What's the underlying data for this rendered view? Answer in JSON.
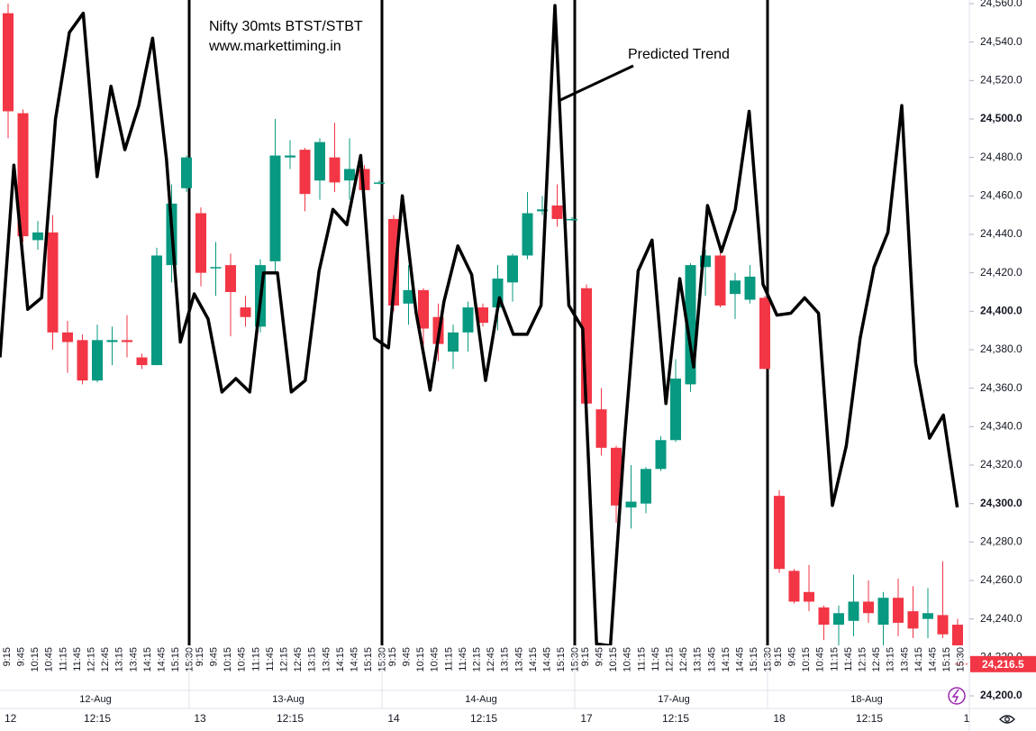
{
  "chart_data": {
    "type": "candlestick",
    "title": "Nifty 30mts BTST/STBT",
    "subtitle": "www.markettiming.in",
    "annotation": "Predicted Trend",
    "dates": [
      "12-Aug",
      "13-Aug",
      "14-Aug",
      "17-Aug",
      "18-Aug"
    ],
    "session_times": [
      "9:15",
      "9:45",
      "10:15",
      "10:45",
      "11:15",
      "11:45",
      "12:15",
      "12:45",
      "13:15",
      "13:45",
      "14:15",
      "14:45",
      "15:15",
      "15:30"
    ],
    "bottom_axis": [
      "12",
      "12:15",
      "13",
      "12:15",
      "14",
      "12:15",
      "17",
      "12:15",
      "18",
      "12:15",
      "1"
    ],
    "up_color": "#089981",
    "down_color": "#f23645",
    "candles": {
      "open": [
        24555,
        24503,
        24437,
        24441,
        24389,
        24385,
        24364,
        24384,
        24385,
        24376,
        24372,
        24424,
        24464,
        24451,
        24423,
        24424,
        24402,
        24392,
        24426,
        24480,
        24484,
        24468,
        24480,
        24468,
        24474,
        24467,
        24448,
        24404,
        24411,
        24397,
        24379,
        24389,
        24402,
        24402,
        24415,
        24429,
        24452,
        24455,
        24448,
        24412,
        24349,
        24329,
        24298,
        24300,
        24318,
        24333,
        24362,
        24423,
        24429,
        24409,
        24406,
        24407,
        24304,
        24265,
        24254,
        24246,
        24237,
        24239,
        24249,
        24237,
        24251,
        24244,
        24240,
        24242,
        24237
      ],
      "high": [
        24560,
        24505,
        24447,
        24450,
        24395,
        24388,
        24393,
        24392,
        24398,
        24378,
        24433,
        24466,
        24481,
        24454,
        24436,
        24430,
        24408,
        24427,
        24500,
        24489,
        24485,
        24490,
        24498,
        24490,
        24476,
        24468,
        24450,
        24424,
        24412,
        24404,
        24393,
        24405,
        24404,
        24424,
        24430,
        24462,
        24460,
        24466,
        24449,
        24414,
        24360,
        24330,
        24320,
        24319,
        24335,
        24375,
        24425,
        24432,
        24432,
        24420,
        24424,
        24408,
        24307,
        24266,
        24268,
        24247,
        24247,
        24263,
        24260,
        24254,
        24261,
        24257,
        24256,
        24270,
        24240
      ],
      "low": [
        24490,
        24436,
        24432,
        24380,
        24368,
        24362,
        24363,
        24372,
        24376,
        24370,
        24372,
        24415,
        24462,
        24413,
        24408,
        24387,
        24392,
        24389,
        24420,
        24474,
        24452,
        24458,
        24462,
        24458,
        24459,
        24466,
        24400,
        24393,
        24381,
        24374,
        24370,
        24379,
        24392,
        24390,
        24405,
        24427,
        24450,
        24444,
        24447,
        24342,
        24325,
        24290,
        24287,
        24295,
        24317,
        24332,
        24358,
        24408,
        24402,
        24396,
        24404,
        24370,
        24264,
        24248,
        24244,
        24229,
        24222,
        24231,
        24238,
        24226,
        24231,
        24230,
        24230,
        24230,
        24214
      ],
      "close": [
        24504,
        24439,
        24441,
        24389,
        24384,
        24364,
        24385,
        24385,
        24384,
        24372,
        24429,
        24456,
        24480,
        24420,
        24423,
        24410,
        24397,
        24424,
        24481,
        24481,
        24461,
        24488,
        24467,
        24474,
        24463,
        24467,
        24403,
        24411,
        24391,
        24383,
        24389,
        24402,
        24394,
        24417,
        24429,
        24451,
        24453,
        24448,
        24448,
        24352,
        24329,
        24299,
        24301,
        24318,
        24333,
        24365,
        24424,
        24429,
        24403,
        24416,
        24418,
        24370,
        24266,
        24249,
        24249,
        24237,
        24243,
        24249,
        24243,
        24251,
        24238,
        24235,
        24243,
        24232,
        24216.5
      ]
    },
    "trend": {
      "color": "#000000",
      "values": [
        24376,
        24476,
        24401,
        24407,
        24500,
        24545,
        24555,
        24470,
        24517,
        24484,
        24507,
        24542,
        24479,
        24384,
        24409,
        24396,
        24358,
        24365,
        24358,
        24420,
        24420,
        24358,
        24364,
        24421,
        24453,
        24445,
        24481,
        24386,
        24381,
        24460,
        24399,
        24359,
        24405,
        24434,
        24419,
        24364,
        24407,
        24388,
        24388,
        24403,
        24559,
        24403,
        24391,
        24227,
        24226,
        24332,
        24421,
        24437,
        24352,
        24417,
        24371,
        24455,
        24431,
        24453,
        24504,
        24414,
        24398,
        24399,
        24407,
        24399,
        24299,
        24330,
        24386,
        24423,
        24441,
        24507,
        24373,
        24334,
        24346,
        24298
      ]
    },
    "last_price": {
      "value": 24216.5,
      "label": "24,216.5"
    },
    "ylim": [
      24200,
      24560
    ],
    "yticks": [
      {
        "value": 24200,
        "label": "24,200.0"
      },
      {
        "value": 24220,
        "label": "24,220.0"
      },
      {
        "value": 24240,
        "label": "24,240.0"
      },
      {
        "value": 24260,
        "label": "24,260.0"
      },
      {
        "value": 24280,
        "label": "24,280.0"
      },
      {
        "value": 24300,
        "label": "24,300.0"
      },
      {
        "value": 24320,
        "label": "24,320.0"
      },
      {
        "value": 24340,
        "label": "24,340.0"
      },
      {
        "value": 24360,
        "label": "24,360.0"
      },
      {
        "value": 24380,
        "label": "24,380.0"
      },
      {
        "value": 24400,
        "label": "24,400.0"
      },
      {
        "value": 24420,
        "label": "24,420.0"
      },
      {
        "value": 24440,
        "label": "24,440.0"
      },
      {
        "value": 24460,
        "label": "24,460.0"
      },
      {
        "value": 24480,
        "label": "24,480.0"
      },
      {
        "value": 24500,
        "label": "24,500.0"
      },
      {
        "value": 24520,
        "label": "24,520.0"
      },
      {
        "value": 24540,
        "label": "24,540.0"
      },
      {
        "value": 24560,
        "label": "24,560.0"
      }
    ]
  }
}
